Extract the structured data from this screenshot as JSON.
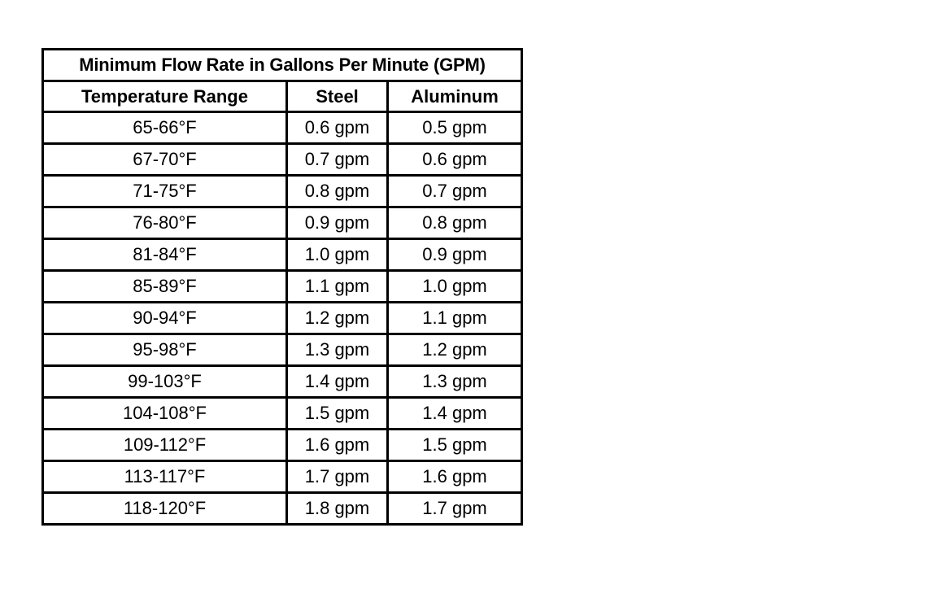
{
  "table": {
    "title": "Minimum Flow Rate in Gallons Per Minute (GPM)",
    "headers": [
      "Temperature Range",
      "Steel",
      "Aluminum"
    ],
    "rows": [
      [
        "65-66°F",
        "0.6 gpm",
        "0.5 gpm"
      ],
      [
        "67-70°F",
        "0.7 gpm",
        "0.6 gpm"
      ],
      [
        "71-75°F",
        "0.8 gpm",
        "0.7 gpm"
      ],
      [
        "76-80°F",
        "0.9 gpm",
        "0.8 gpm"
      ],
      [
        "81-84°F",
        "1.0 gpm",
        "0.9 gpm"
      ],
      [
        "85-89°F",
        "1.1 gpm",
        "1.0 gpm"
      ],
      [
        "90-94°F",
        "1.2 gpm",
        "1.1 gpm"
      ],
      [
        "95-98°F",
        "1.3 gpm",
        "1.2 gpm"
      ],
      [
        "99-103°F",
        "1.4 gpm",
        "1.3 gpm"
      ],
      [
        "104-108°F",
        "1.5 gpm",
        "1.4 gpm"
      ],
      [
        "109-112°F",
        "1.6 gpm",
        "1.5 gpm"
      ],
      [
        "113-117°F",
        "1.7 gpm",
        "1.6 gpm"
      ],
      [
        "118-120°F",
        "1.8 gpm",
        "1.7 gpm"
      ]
    ]
  }
}
